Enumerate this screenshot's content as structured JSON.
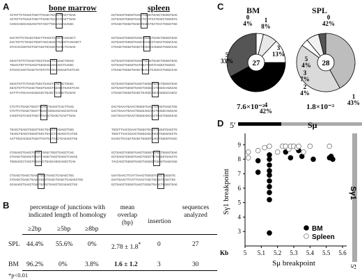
{
  "panels": {
    "a": "A",
    "b": "B",
    "c": "C",
    "d": "D"
  },
  "panel_a": {
    "bm_title": "bone marrow",
    "spl_title": "spleen",
    "bm_blocks": [
      [
        "ACTGTTCTGAGCTGGCTTGAGCTGAGCTCACTTGAG",
        "ACTGTTCTGAGCTGGCTTGAGCTGAGCTCACTTGAG",
        "CAGCCAGGCAGGAGCTGTAGCTTGGGAGGACAGGC"
      ],
      [
        "GACTGTTCTGAGCTGGCTTGAGCTGAGCTCAGAGCT",
        "GACTGTTCTGAGCTGGGTAGCAGAGCTGAGCTCAGAGCT",
        "GTCCACAGGTGCTGGTAGGTGAAGCTGAGCTCAGAG"
      ],
      [
        "GGACTGTTCTGAGCTGGCTGAGCTCAGAGCTGGAG",
        "TGGACTGTTCTGAGCTGGGGAGGAGGAGCTCAGGC",
        "GTGACCAGCTGAGCTGTGTCTCGGGCAGGAGTGCTCAG"
      ],
      [
        "GGACTGTTCTGAGCTGGCTGAGCTCAGAGCTGGGC",
        "GGACTGTTCTGAGCTGGGTGAGCTGGAGCTGAGCTCAG",
        "GATTTATGCAAAGAGGAGCTGAGCTCAGGCTCAGAG"
      ],
      [
        "CTGTTCTGAGCTGGCTTGAGCTGAGCTCACTTGAG",
        "CTGTTCTGAGCTGGCTTGGGTGGGGAGCAGCAGTCAG",
        "CAGGTGCTCAGCTGGCTTGAGCTGAGCTCACTTGAG"
      ],
      [
        "TGAGCTGAGCTGGGCTGGCTGAGCTCAGAGCTGGG",
        "TGAGCTGAGCTGGGGTGGCTGAGCTCAGAGCTCATGG",
        "AATTGGCACGGCTGGGTTGATGCTGGCTCAGAGCTGG"
      ],
      [
        "CTGGAGCTGAGCTGAGCTGGGCTGGCTGAGCTCAG",
        "CTGAGCTGGAGCTGAGTTAGGCTAGCTGAGCTCAGAG",
        "TGGGAGCCTAGCTGGGAGCTGAGCAGGCAGGCTCAG"
      ],
      [
        "CTGAGCTGAGCTGAGCTGGCTGAGCTCAGAGCTGG",
        "CTGAGCTGAGCTGAGCAGGGTGAGCTGAGCTCAGAGCTGG",
        "GCAGAGCTGAGCTGGGTGAGCTGAGCTGCAGAGCTGG"
      ]
    ],
    "spl_blocks": [
      [
        "GCTGAGCTGGGGTGAGCTGGGGTGAGCTGGGGTGAG",
        "GCTGAGCTGGGGTGAGCTGTATCATGAGCTGGGGTG",
        "GTGAGCTGGGGTGAGCTGGGCTGCTCCCTGGGCTGG"
      ],
      [
        "GCTGAGCTGGGGTGAGCTGGGGTGAGCTGGGGTGAG",
        "GCTGAGCTGGGGTGAGCTCAGCCTAGCCTGGGCCAG",
        "CTGAGCTGGGGTGAGCTGAGCCCAGGGCTGGGCCAG"
      ],
      [
        "GCTGAGCTGGGGTGAGCTGGGGTGAGCTGGGGTGAG",
        "GCTGAGCTGGGGTGATGGATGGCTCAGGCTGGGCC",
        "CTGAGCTGGGGTGAGCTGAGCTCAGCCCTGGGCCAG"
      ],
      [
        "GCTGAGCTGGGGTGAGCTGGGGTGAGCTGGGGTGAG",
        "GCTGAGCTGGGGTGAGCTGGGGCCTGGGCCAGGCAG",
        "CTGAGCTGGGGTGAGCTGAGGCAGCCAGGGCCAGCC"
      ],
      [
        "GACTGAAATGAACTGGGGTGAGCTGGGGTGAGCTGG",
        "GACTGAAATGAACTGGGGAGCAGCTGGGGCAGGCAG",
        "GACTGAAATGAACTGGGGAGCAGCTGGCTGGGGCAG"
      ],
      [
        "TGGCTTAACCGAACTGGGGTGAGCTGGGGTGAGCTG",
        "TGGCTTAACCGAACTGGGGAGCTGGGTGGGGAGCTG",
        "GAAGCTCCAGATGAGCTGGGGTGAGCTGGGGTGAGC"
      ],
      [
        "GCTGAGCTGGGGTGAGCTGGGGTGAGCTGGGGTGAG",
        "GCTGAGCTGGGGTGAGCTGGGTTCTGGGGTGAGCTG",
        "TACCAGCTGGGGTGAGCTGGGGCTGGGGTGAGCAGG"
      ],
      [
        "GAATGAACTTCATTAAACTGGGGTGAGCTGGGGTG",
        "GAATGAACTTCATTAAACTAGCTGGGGTGAGCTGG",
        "GCTGAGCTGGGGTGAGCTGGGGTGAGCTGGGGTGAG"
      ]
    ]
  },
  "panel_b": {
    "col_header": "percentage of junctions with indicated length of homology",
    "sub_headers": [
      "≥2bp",
      "≥5bp",
      "≥8bp"
    ],
    "mean_header": "mean overlap (bp)",
    "insertion_header": "insertion",
    "seqs_header": "sequences analyzed",
    "rows": [
      {
        "label": "SPL",
        "p2": "44.4%",
        "p5": "55.6%",
        "p8": "0%",
        "mean": "2.78 ± 1.8",
        "mean_mark": "*",
        "insertion": "0",
        "seqs": "27"
      },
      {
        "label": "BM",
        "p2": "96.2%",
        "p5": "0%",
        "p8": "3.8%",
        "mean": "1.6 ± 1.2",
        "mean_mark": "",
        "insertion": "3",
        "seqs": "30"
      }
    ],
    "footnote": "*p<0.01"
  },
  "chart_data": [
    {
      "type": "pie",
      "title": "BM",
      "center_label": "27",
      "pvalue": "7.6×10⁻²",
      "slices": [
        {
          "label": "0",
          "percent": 4,
          "text": "4%",
          "color": "#ffffff"
        },
        {
          "label": "1",
          "percent": 8,
          "text": "8%",
          "color": "#e8e8e8"
        },
        {
          "label": "3",
          "percent": 13,
          "text": "13%",
          "color": "#ffffff"
        },
        {
          "label": "4",
          "percent": 42,
          "text": "42%",
          "color": "#000000"
        },
        {
          "label": "5",
          "percent": 33,
          "text": "33%",
          "color": "#555555"
        }
      ]
    },
    {
      "type": "pie",
      "title": "SPL",
      "center_label": "28",
      "pvalue": "1.8×10⁻²",
      "slices": [
        {
          "label": "0",
          "percent": 42,
          "text": "42%",
          "color": "#bdbdbd"
        },
        {
          "label": "1",
          "percent": 43,
          "text": "43%",
          "color": "#dadada"
        },
        {
          "label": "2",
          "percent": 4,
          "text": "4%",
          "color": "#ffffff"
        },
        {
          "label": "3",
          "percent": 7,
          "text": "7%",
          "color": "#f2f2f2"
        },
        {
          "label": "5",
          "percent": 4,
          "text": "4%",
          "color": "#555555"
        }
      ]
    },
    {
      "type": "scatter",
      "xlabel": "Sμ breakpoint",
      "ylabel": "Sγ1 breakpoint",
      "x_unit": "Kb",
      "xlim": [
        5,
        5.6
      ],
      "ylim": [
        2,
        9.5
      ],
      "xticks": [
        5,
        5.1,
        5.2,
        5.3,
        5.4,
        5.5,
        5.6
      ],
      "xtick_labels": [
        "5",
        "5.1",
        "5.2",
        "5.3",
        "5.4",
        "5.5",
        "5.6"
      ],
      "yticks": [
        3,
        4,
        5,
        6,
        7,
        8,
        9
      ],
      "ytick_labels": [
        "3",
        "4",
        "5",
        "6",
        "7",
        "8",
        "9"
      ],
      "top_axis_label": "Sμ",
      "top_axis_5prime": "5'",
      "right_axis_label": "Sγ1",
      "right_axis_5prime": "5'",
      "legend_position": "bottom-right",
      "series": [
        {
          "name": "BM",
          "fill": "#000000",
          "points": [
            [
              5.08,
              7.1
            ],
            [
              5.08,
              7.9
            ],
            [
              5.15,
              8.3
            ],
            [
              5.15,
              8.0
            ],
            [
              5.15,
              7.6
            ],
            [
              5.15,
              7.2
            ],
            [
              5.15,
              6.9
            ],
            [
              5.15,
              6.5
            ],
            [
              5.15,
              6.1
            ],
            [
              5.15,
              5.7
            ],
            [
              5.15,
              5.2
            ],
            [
              5.15,
              2.9
            ],
            [
              5.25,
              8.5
            ],
            [
              5.28,
              8.1
            ],
            [
              5.33,
              8.6
            ],
            [
              5.35,
              8.2
            ],
            [
              5.42,
              8.0
            ],
            [
              5.52,
              8.1
            ],
            [
              5.53,
              8.2
            ],
            [
              5.54,
              8.0
            ]
          ]
        },
        {
          "name": "Spleen",
          "fill": "#ffffff",
          "points": [
            [
              5.02,
              8.5
            ],
            [
              5.02,
              8.1
            ],
            [
              5.08,
              8.6
            ],
            [
              5.12,
              8.8
            ],
            [
              5.15,
              8.9
            ],
            [
              5.2,
              8.5
            ],
            [
              5.23,
              8.9
            ],
            [
              5.25,
              8.9
            ],
            [
              5.27,
              8.7
            ],
            [
              5.28,
              8.9
            ],
            [
              5.3,
              8.9
            ],
            [
              5.32,
              8.8
            ],
            [
              5.33,
              8.9
            ],
            [
              5.36,
              8.5
            ],
            [
              5.4,
              8.9
            ],
            [
              5.52,
              8.9
            ]
          ]
        }
      ]
    }
  ]
}
